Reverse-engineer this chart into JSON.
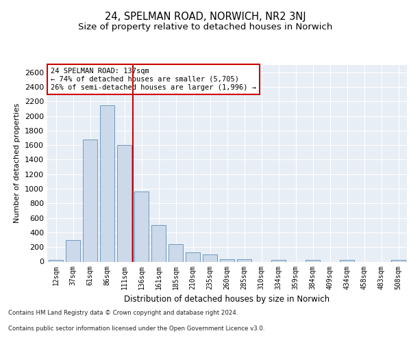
{
  "title1": "24, SPELMAN ROAD, NORWICH, NR2 3NJ",
  "title2": "Size of property relative to detached houses in Norwich",
  "xlabel": "Distribution of detached houses by size in Norwich",
  "ylabel": "Number of detached properties",
  "categories": [
    "12sqm",
    "37sqm",
    "61sqm",
    "86sqm",
    "111sqm",
    "136sqm",
    "161sqm",
    "185sqm",
    "210sqm",
    "235sqm",
    "260sqm",
    "285sqm",
    "310sqm",
    "334sqm",
    "359sqm",
    "384sqm",
    "409sqm",
    "434sqm",
    "458sqm",
    "483sqm",
    "508sqm"
  ],
  "values": [
    20,
    295,
    1680,
    2150,
    1605,
    960,
    500,
    235,
    125,
    100,
    30,
    30,
    0,
    20,
    0,
    20,
    0,
    20,
    0,
    0,
    20
  ],
  "bar_color": "#ccd9ea",
  "bar_edge_color": "#5b8db8",
  "vline_color": "#cc0000",
  "vline_x": 4.5,
  "annotation_text": "24 SPELMAN ROAD: 137sqm\n← 74% of detached houses are smaller (5,705)\n26% of semi-detached houses are larger (1,996) →",
  "annotation_box_facecolor": "#ffffff",
  "annotation_box_edgecolor": "#cc0000",
  "ylim": [
    0,
    2700
  ],
  "yticks": [
    0,
    200,
    400,
    600,
    800,
    1000,
    1200,
    1400,
    1600,
    1800,
    2000,
    2200,
    2400,
    2600
  ],
  "plot_bg_color": "#e8eef5",
  "grid_color": "#ffffff",
  "footer1": "Contains HM Land Registry data © Crown copyright and database right 2024.",
  "footer2": "Contains public sector information licensed under the Open Government Licence v3.0."
}
